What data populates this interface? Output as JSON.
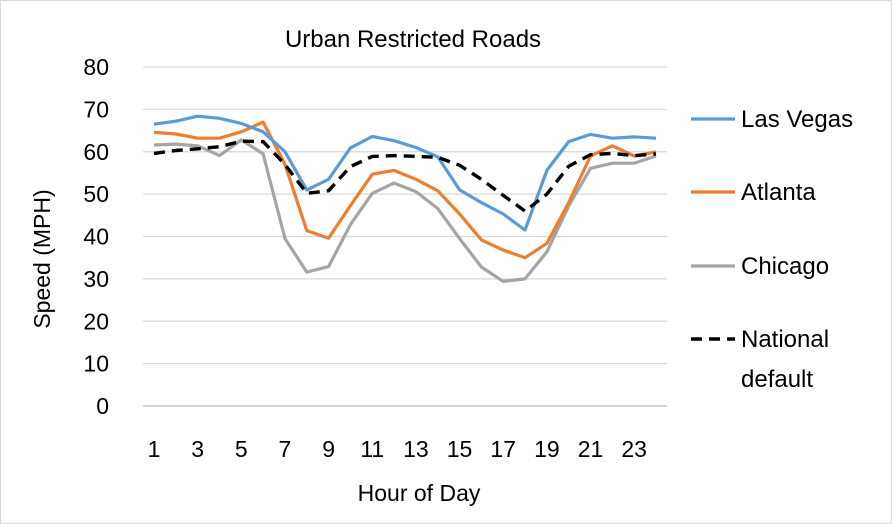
{
  "chart_data": {
    "type": "line",
    "title": "Urban Restricted Roads",
    "xlabel": "Hour of Day",
    "ylabel": "Speed (MPH)",
    "ylim": [
      0,
      80
    ],
    "yticks": [
      "0",
      "10",
      "20",
      "30",
      "40",
      "50",
      "60",
      "70",
      "80"
    ],
    "xlim": [
      1,
      24
    ],
    "xticks": [
      "1",
      "3",
      "5",
      "7",
      "9",
      "11",
      "13",
      "15",
      "17",
      "19",
      "21",
      "23"
    ],
    "grid": true,
    "legend_position": "right",
    "x": [
      1,
      2,
      3,
      4,
      5,
      6,
      7,
      8,
      9,
      10,
      11,
      12,
      13,
      14,
      15,
      16,
      17,
      18,
      19,
      20,
      21,
      22,
      23,
      24
    ],
    "series": [
      {
        "name": "Las Vegas",
        "color": "#5b9bd5",
        "dash": "solid",
        "values": [
          66.5,
          67.2,
          68.4,
          67.9,
          66.7,
          64.7,
          60.0,
          51.0,
          53.5,
          60.9,
          63.6,
          62.6,
          61.0,
          58.8,
          51.0,
          48.0,
          45.3,
          41.5,
          55.6,
          62.4,
          64.1,
          63.2,
          63.5,
          63.2
        ]
      },
      {
        "name": "Atlanta",
        "color": "#ed7d31",
        "dash": "solid",
        "values": [
          64.6,
          64.2,
          63.2,
          63.2,
          64.7,
          67.0,
          57.0,
          41.4,
          39.6,
          47.3,
          54.7,
          55.6,
          53.5,
          50.8,
          45.3,
          39.2,
          36.8,
          35.0,
          38.4,
          48.0,
          59.0,
          61.4,
          59.0,
          60.0
        ]
      },
      {
        "name": "Chicago",
        "color": "#a5a5a5",
        "dash": "solid",
        "values": [
          61.6,
          61.8,
          61.4,
          59.1,
          62.8,
          59.5,
          39.5,
          31.6,
          32.9,
          42.8,
          50.2,
          52.6,
          50.6,
          46.6,
          39.5,
          32.8,
          29.4,
          30.0,
          36.4,
          47.2,
          56.1,
          57.3,
          57.3,
          59.0
        ]
      },
      {
        "name": "National default",
        "color": "#000000",
        "dash": "dashed",
        "values": [
          59.6,
          60.3,
          60.7,
          61.2,
          62.5,
          62.4,
          57.0,
          50.2,
          50.8,
          56.5,
          58.9,
          59.1,
          58.9,
          58.7,
          56.8,
          53.5,
          49.7,
          46.0,
          50.0,
          56.6,
          59.3,
          59.6,
          59.1,
          59.5
        ]
      }
    ]
  }
}
